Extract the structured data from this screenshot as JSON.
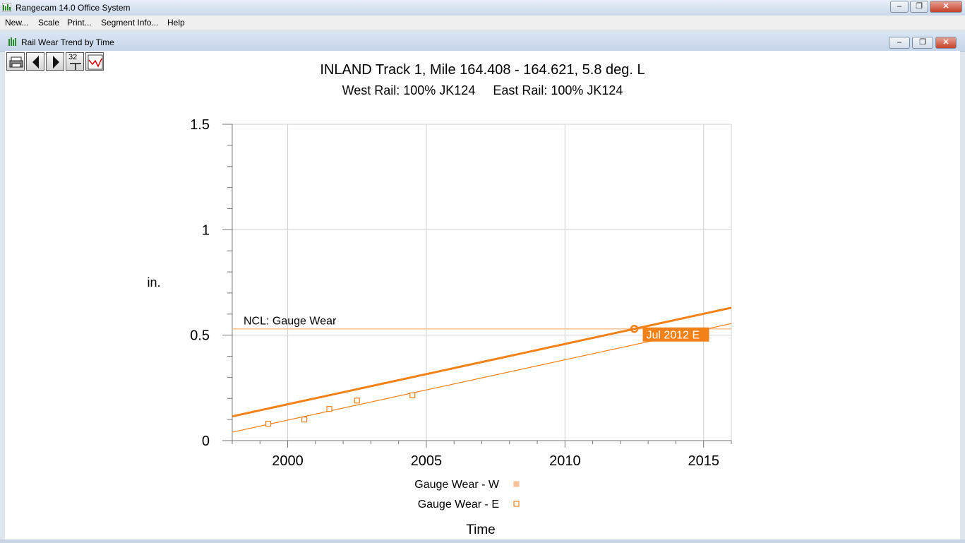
{
  "app": {
    "title": "Rangecam 14.0 Office System"
  },
  "menu": {
    "items": [
      "New...",
      "Scale",
      "Print...",
      "Segment Info...",
      "Help"
    ]
  },
  "window": {
    "title": "Rail Wear Trend by Time"
  },
  "toolbar": {
    "number_label": "32"
  },
  "colors": {
    "accent": "#f28118",
    "light_series": "#f5c29a",
    "grid": "#d0d0d0"
  },
  "chart_data": {
    "type": "scatter",
    "title": "INLAND Track 1, Mile  164.408 - 164.621,  5.8 deg. L",
    "subtitle": "West Rail: 100% JK124     East Rail: 100% JK124",
    "xlabel": "Time",
    "ylabel": "in.",
    "xlim": [
      1998.0,
      2016.0
    ],
    "ylim": [
      0,
      1.5
    ],
    "x_ticks": [
      2000,
      2005,
      2010,
      2015
    ],
    "x_tick_labels": [
      "2000",
      "2005",
      "2010",
      "2015"
    ],
    "y_ticks": [
      0,
      0.5,
      1,
      1.5
    ],
    "y_tick_labels": [
      "0",
      "0.5",
      "1",
      "1.5"
    ],
    "grid": true,
    "legend_position": "bottom-center",
    "ncl": {
      "label": "NCL:  Gauge Wear",
      "value": 0.53
    },
    "series": [
      {
        "name": "Gauge Wear - W",
        "marker": "filled-square",
        "color": "#f5c29a",
        "points": []
      },
      {
        "name": "Gauge Wear - E",
        "marker": "open-square",
        "color": "#f28118",
        "points": [
          {
            "x": 1999.3,
            "y": 0.08
          },
          {
            "x": 2000.6,
            "y": 0.1
          },
          {
            "x": 2001.5,
            "y": 0.15
          },
          {
            "x": 2002.5,
            "y": 0.19
          },
          {
            "x": 2004.5,
            "y": 0.215
          }
        ]
      }
    ],
    "trend_lines": [
      {
        "name": "trend-upper",
        "x": [
          1998.0,
          2016.0
        ],
        "y": [
          0.115,
          0.63
        ],
        "width": "thick"
      },
      {
        "name": "trend-lower",
        "x": [
          1998.0,
          2016.0
        ],
        "y": [
          0.04,
          0.555
        ],
        "width": "thin"
      }
    ],
    "annotation": {
      "label": "Jul 2012 E",
      "x": 2012.5,
      "y": 0.53
    }
  }
}
